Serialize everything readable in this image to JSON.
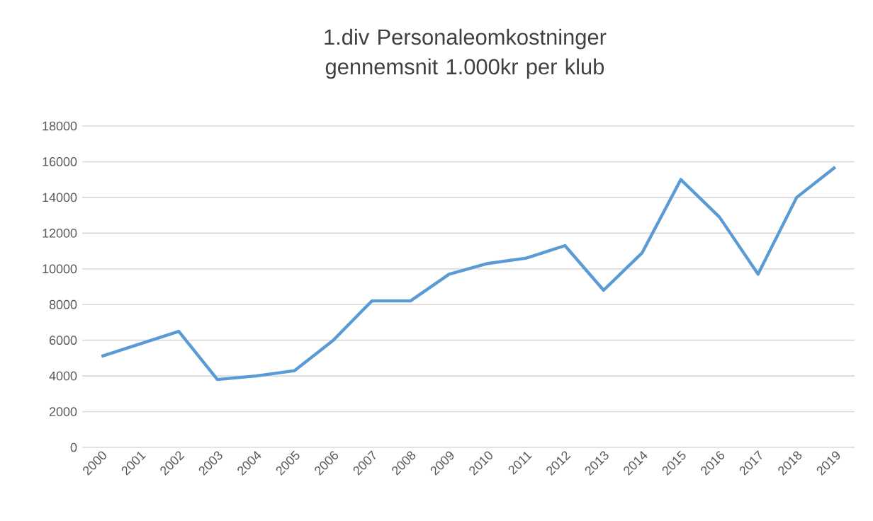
{
  "chart_data": {
    "type": "line",
    "title": "1.div Personaleomkostninger gennemsnit 1.000kr per klub",
    "categories": [
      "2000",
      "2001",
      "2002",
      "2003",
      "2004",
      "2005",
      "2006",
      "2007",
      "2008",
      "2009",
      "2010",
      "2011",
      "2012",
      "2013",
      "2014",
      "2015",
      "2016",
      "2017",
      "2018",
      "2019"
    ],
    "series": [
      {
        "color": "#5b9bd5",
        "values": [
          5100,
          5800,
          6500,
          3800,
          4000,
          4300,
          6000,
          8200,
          8200,
          9700,
          10300,
          10600,
          11300,
          8800,
          10900,
          15000,
          12900,
          9700,
          14000,
          15700
        ]
      }
    ],
    "ylim": [
      0,
      18000
    ],
    "yticks": [
      0,
      2000,
      4000,
      6000,
      8000,
      10000,
      12000,
      14000,
      16000,
      18000
    ],
    "grid": "y",
    "legend": false,
    "marker": "none",
    "line_style": "solid"
  }
}
